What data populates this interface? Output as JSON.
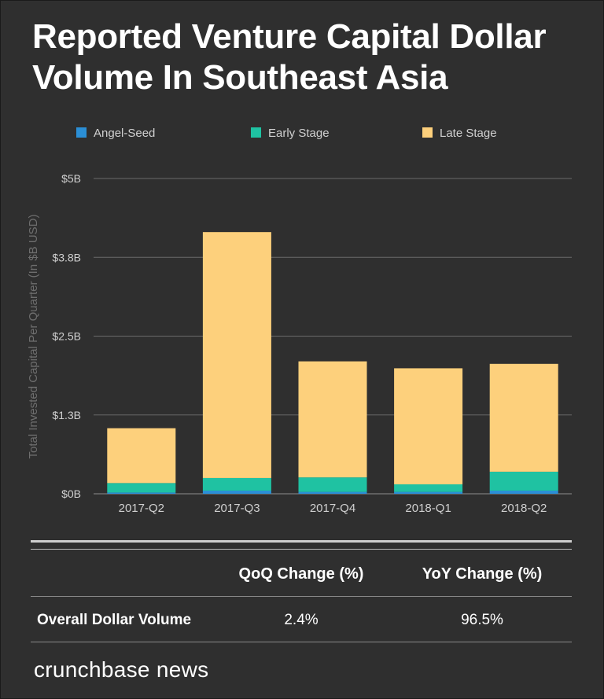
{
  "title": "Reported Venture Capital Dollar Volume In Southeast Asia",
  "chart_data": {
    "type": "bar",
    "stacked": true,
    "categories": [
      "2017-Q2",
      "2017-Q3",
      "2017-Q4",
      "2018-Q1",
      "2018-Q2"
    ],
    "series": [
      {
        "name": "Angel-Seed",
        "color": "#2b8fd6",
        "values": [
          0.02,
          0.05,
          0.03,
          0.03,
          0.05
        ]
      },
      {
        "name": "Early Stage",
        "color": "#1fc2a2",
        "values": [
          0.15,
          0.2,
          0.23,
          0.12,
          0.3
        ]
      },
      {
        "name": "Late Stage",
        "color": "#fdd07c",
        "values": [
          0.87,
          3.9,
          1.84,
          1.84,
          1.71
        ]
      }
    ],
    "ylabel": "Total Invested Capital Per Quarter (In $B USD)",
    "xlabel": "",
    "yticks": [
      "$0B",
      "$1.3B",
      "$2.5B",
      "$3.8B",
      "$5B"
    ],
    "ylim": [
      0,
      5
    ],
    "legend_position": "top"
  },
  "table": {
    "headers": [
      "QoQ Change (%)",
      "YoY Change (%)"
    ],
    "row_label": "Overall Dollar Volume",
    "values": [
      "2.4%",
      "96.5%"
    ]
  },
  "brand": "crunchbase news",
  "colors": {
    "background": "#2f2f2f",
    "grid": "#6a6a6a",
    "axis_text": "#d0d0d0"
  }
}
